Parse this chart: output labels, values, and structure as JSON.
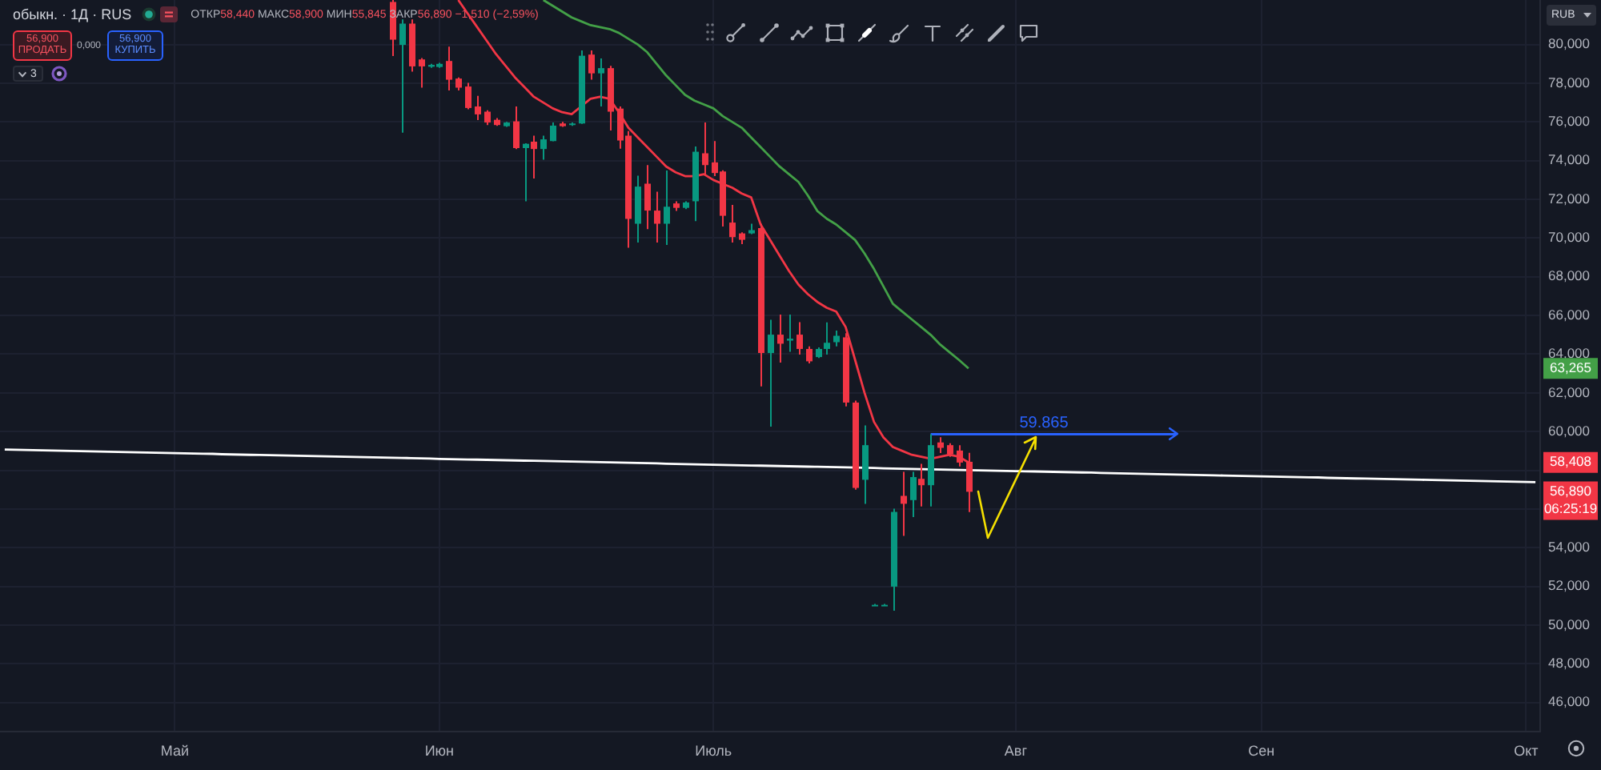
{
  "chart_data": {
    "type": "candlestick",
    "title": "обыкн. · 1Д · RUS",
    "subtitle": "ОТКР58,440 МАКС58,900 МИН55,845 ЗАКР56,890 −1,510 (−2,59%)",
    "ylabel": "RUB",
    "categories": [
      null,
      null,
      null,
      null,
      null,
      null,
      null,
      null,
      null,
      null,
      null,
      null,
      null,
      null,
      null,
      null,
      null,
      null,
      "Май",
      null,
      null,
      null,
      null,
      null,
      null,
      null,
      null,
      null,
      null,
      null,
      null,
      null,
      null,
      null,
      null,
      null,
      null,
      null,
      null,
      null,
      null,
      null,
      null,
      null,
      null,
      null,
      "Июн",
      null,
      null,
      null,
      null,
      null,
      null,
      null,
      null,
      null,
      null,
      null,
      null,
      null,
      null,
      null,
      null,
      null,
      null,
      null,
      null,
      null,
      null,
      null,
      null,
      null,
      null,
      null,
      null,
      "Июль",
      null,
      null,
      null,
      null,
      null,
      null,
      null,
      null,
      null,
      null,
      null,
      null,
      null,
      null,
      null,
      null,
      null,
      null,
      null,
      null,
      null,
      null,
      null,
      null,
      null,
      null,
      null,
      null,
      null,
      null,
      null,
      "Авг",
      null,
      null,
      null,
      null,
      null,
      null,
      null,
      null,
      null,
      null,
      null,
      null,
      null,
      null,
      null,
      null,
      null,
      null,
      null,
      null,
      null,
      null,
      null,
      null,
      null,
      "Сен",
      null,
      null,
      null,
      null,
      null,
      null,
      null,
      null,
      null,
      null,
      null,
      null,
      null,
      null,
      null,
      null,
      null,
      null,
      null,
      null,
      null,
      null,
      null,
      null,
      null,
      null,
      null,
      "Окт",
      null
    ],
    "ylim": [
      44.5,
      82.3
    ],
    "yticks": [
      {
        "value": 46,
        "label": "46,000"
      },
      {
        "value": 48,
        "label": "48,000"
      },
      {
        "value": 50,
        "label": "50,000"
      },
      {
        "value": 52,
        "label": "52,000"
      },
      {
        "value": 54,
        "label": "54,000"
      },
      {
        "value": 56,
        "label": null
      },
      {
        "value": 58,
        "label": null
      },
      {
        "value": 60,
        "label": "60,000"
      },
      {
        "value": 62,
        "label": "62,000"
      },
      {
        "value": 64,
        "label": "64,000"
      },
      {
        "value": 66,
        "label": "66,000"
      },
      {
        "value": 68,
        "label": "68,000"
      },
      {
        "value": 70,
        "label": "70,000"
      },
      {
        "value": 72,
        "label": "72,000"
      },
      {
        "value": 74,
        "label": "74,000"
      },
      {
        "value": 76,
        "label": "76,000"
      },
      {
        "value": 78,
        "label": "78,000"
      },
      {
        "value": 80,
        "label": "80,000"
      }
    ],
    "grid": true,
    "series": [
      {
        "ohlc": [
          null,
          null,
          null,
          null,
          null,
          null,
          null,
          null,
          null,
          null,
          null,
          null,
          null,
          null,
          null,
          null,
          null,
          null,
          null,
          null,
          null,
          null,
          null,
          null,
          null,
          null,
          null,
          null,
          null,
          null,
          null,
          null,
          null,
          null,
          null,
          null,
          null,
          null,
          null,
          null,
          null,
          [
            82.2,
            82.3,
            79.4,
            80.25
          ],
          [
            79.98,
            81.3,
            75.45,
            81.08
          ],
          [
            81.08,
            81.3,
            78.6,
            78.87
          ],
          [
            79.23,
            79.3,
            77.77,
            78.87
          ],
          [
            78.85,
            79.0,
            78.8,
            78.95
          ],
          [
            78.84,
            79.05,
            78.8,
            79.0
          ],
          [
            79.15,
            79.89,
            77.63,
            78.18
          ],
          [
            78.24,
            78.3,
            77.63,
            77.77
          ],
          [
            77.83,
            78.02,
            76.65,
            76.72
          ],
          [
            76.8,
            77.35,
            76.1,
            76.39
          ],
          [
            76.53,
            76.6,
            75.84,
            75.97
          ],
          [
            76.11,
            76.2,
            75.8,
            75.84
          ],
          [
            75.78,
            76.0,
            75.75,
            75.97
          ],
          [
            76.03,
            76.8,
            74.6,
            74.65
          ],
          [
            74.65,
            74.9,
            71.9,
            74.87
          ],
          [
            74.98,
            75.29,
            73.08,
            74.6
          ],
          [
            74.6,
            75.29,
            74.05,
            75.1
          ],
          [
            75.01,
            75.97,
            75.0,
            75.81
          ],
          [
            75.92,
            76.0,
            75.75,
            75.78
          ],
          [
            75.84,
            75.97,
            75.8,
            75.92
          ],
          [
            75.92,
            79.69,
            75.9,
            79.42
          ],
          [
            79.48,
            79.69,
            78.18,
            78.51
          ],
          [
            78.51,
            79.28,
            76.8,
            78.78
          ],
          [
            78.78,
            78.9,
            75.56,
            76.53
          ],
          [
            76.69,
            76.8,
            74.62,
            75.04
          ],
          [
            75.29,
            75.53,
            69.5,
            70.99
          ],
          [
            70.74,
            73.22,
            69.77,
            72.66
          ],
          [
            72.81,
            73.77,
            70.46,
            71.42
          ],
          [
            71.42,
            72.39,
            69.77,
            70.74
          ],
          [
            70.74,
            73.49,
            69.64,
            71.62
          ],
          [
            71.79,
            71.9,
            71.4,
            71.56
          ],
          [
            71.56,
            71.9,
            71.5,
            71.84
          ],
          [
            71.9,
            74.73,
            70.88,
            74.46
          ],
          [
            74.38,
            75.97,
            73.22,
            73.77
          ],
          [
            73.91,
            75.01,
            73.2,
            73.36
          ],
          [
            73.44,
            73.5,
            70.6,
            71.15
          ],
          [
            70.8,
            71.71,
            69.77,
            70.05
          ],
          [
            70.24,
            70.3,
            69.69,
            69.91
          ],
          [
            70.24,
            70.74,
            70.2,
            70.41
          ],
          [
            70.51,
            70.74,
            62.33,
            64.06
          ],
          [
            64.06,
            65.78,
            60.26,
            65.01
          ],
          [
            65.01,
            66.05,
            63.57,
            64.54
          ],
          [
            64.7,
            66.05,
            64.12,
            64.8
          ],
          [
            65.01,
            65.65,
            63.98,
            64.27
          ],
          [
            64.27,
            64.4,
            63.52,
            63.63
          ],
          [
            63.85,
            64.35,
            63.8,
            64.27
          ],
          [
            64.27,
            65.64,
            63.98,
            64.59
          ],
          [
            64.62,
            65.22,
            64.4,
            64.95
          ],
          [
            64.87,
            65.09,
            61.3,
            61.5
          ],
          [
            61.5,
            61.6,
            57.0,
            57.09
          ],
          [
            57.51,
            60.32,
            56.27,
            59.3
          ],
          [
            51.05,
            51.1,
            51.0,
            51.05
          ],
          [
            51.05,
            51.1,
            51.0,
            51.05
          ],
          [
            51.99,
            56.02,
            50.75,
            55.85
          ],
          [
            56.68,
            57.92,
            54.61,
            56.27
          ],
          [
            56.46,
            57.92,
            55.58,
            57.65
          ],
          [
            57.56,
            58.33,
            56.13,
            57.23
          ],
          [
            57.23,
            59.865,
            56.13,
            59.3
          ],
          [
            59.44,
            59.71,
            58.89,
            59.16
          ],
          [
            59.3,
            59.4,
            58.7,
            58.83
          ],
          [
            59.02,
            59.3,
            58.2,
            58.4
          ],
          [
            58.44,
            58.9,
            55.845,
            56.89
          ],
          null,
          null,
          null,
          null,
          null,
          null,
          null,
          null,
          null,
          null,
          null,
          null,
          null,
          null,
          null,
          null,
          null,
          null,
          null,
          null,
          null,
          null,
          null,
          null,
          null,
          null,
          null,
          null,
          null,
          null,
          null,
          null,
          null,
          null,
          null,
          null,
          null,
          null,
          null,
          null,
          null,
          null,
          null,
          null,
          null,
          null,
          null,
          null,
          null,
          null,
          null,
          null,
          null,
          null,
          null,
          null,
          null,
          null,
          null,
          null
        ],
        "colors": [
          null,
          null,
          null,
          null,
          null,
          null,
          null,
          null,
          null,
          null,
          null,
          null,
          null,
          null,
          null,
          null,
          null,
          null,
          null,
          null,
          null,
          null,
          null,
          null,
          null,
          null,
          null,
          null,
          null,
          null,
          null,
          null,
          null,
          null,
          null,
          null,
          null,
          null,
          null,
          null,
          null,
          "#f23645",
          "#089981",
          "#f23645",
          "#f23645",
          "#089981",
          "#089981",
          "#f23645",
          "#f23645",
          "#f23645",
          "#f23645",
          "#f23645",
          "#f23645",
          "#089981",
          "#f23645",
          "#089981",
          "#f23645",
          "#089981",
          "#089981",
          "#f23645",
          "#089981",
          "#089981",
          "#f23645",
          "#089981",
          "#f23645",
          "#f23645",
          "#f23645",
          "#089981",
          "#f23645",
          "#f23645",
          "#089981",
          "#f23645",
          "#089981",
          "#089981",
          "#f23645",
          "#f23645",
          "#f23645",
          "#f23645",
          "#f23645",
          "#089981",
          "#f23645",
          "#089981",
          "#f23645",
          "#089981",
          "#f23645",
          "#f23645",
          "#089981",
          "#089981",
          "#089981",
          "#f23645",
          "#f23645",
          "#089981",
          "#089981",
          "#089981",
          "#089981",
          "#f23645",
          "#089981",
          "#f23645",
          "#089981",
          "#f23645",
          "#f23645",
          "#f23645",
          "#f23645",
          null,
          null,
          null,
          null,
          null,
          null,
          null,
          null,
          null,
          null,
          null,
          null,
          null,
          null,
          null,
          null,
          null,
          null,
          null,
          null,
          null,
          null,
          null,
          null,
          null,
          null,
          null,
          null,
          null,
          null,
          null,
          null,
          null,
          null,
          null,
          null,
          null,
          null,
          null,
          null,
          null,
          null,
          null,
          null,
          null,
          null,
          null,
          null,
          null,
          null,
          null,
          null,
          null,
          null,
          null,
          null,
          null,
          null,
          null,
          null
        ]
      },
      {
        "type": "line",
        "color": "#f23645",
        "values": [
          null,
          null,
          null,
          null,
          null,
          null,
          null,
          null,
          null,
          null,
          null,
          null,
          null,
          null,
          null,
          null,
          null,
          null,
          null,
          null,
          null,
          null,
          null,
          null,
          null,
          null,
          null,
          null,
          null,
          null,
          null,
          null,
          null,
          null,
          null,
          null,
          null,
          null,
          null,
          null,
          null,
          null,
          null,
          null,
          null,
          null,
          null,
          null,
          82.3,
          81.6,
          80.9,
          80.2,
          79.5,
          78.9,
          78.3,
          77.8,
          77.3,
          77.0,
          76.7,
          76.5,
          76.4,
          76.8,
          77.2,
          77.3,
          77.2,
          76.5,
          75.7,
          75.2,
          74.7,
          74.2,
          73.7,
          73.4,
          73.2,
          73.2,
          73.3,
          73.0,
          72.8,
          72.6,
          72.3,
          72.1,
          70.7,
          69.9,
          69.1,
          68.3,
          67.6,
          67.1,
          66.7,
          66.4,
          66.2,
          65.4,
          63.7,
          62.0,
          60.5,
          59.7,
          59.2,
          59.0,
          58.8,
          58.7,
          58.6,
          58.7,
          58.8,
          58.7,
          58.408,
          null,
          null,
          null,
          null,
          null,
          null,
          null,
          null,
          null,
          null,
          null,
          null,
          null,
          null,
          null,
          null,
          null,
          null,
          null,
          null,
          null,
          null,
          null,
          null,
          null,
          null,
          null,
          null,
          null,
          null,
          null,
          null,
          null,
          null,
          null,
          null,
          null,
          null,
          null,
          null,
          null,
          null,
          null,
          null,
          null,
          null,
          null,
          null,
          null,
          null,
          null,
          null,
          null,
          null,
          null,
          null,
          null,
          null,
          null,
          null
        ]
      },
      {
        "type": "line",
        "color": "#43a047",
        "values": [
          null,
          null,
          null,
          null,
          null,
          null,
          null,
          null,
          null,
          null,
          null,
          null,
          null,
          null,
          null,
          null,
          null,
          null,
          null,
          null,
          null,
          null,
          null,
          null,
          null,
          null,
          null,
          null,
          null,
          null,
          null,
          null,
          null,
          null,
          null,
          null,
          null,
          null,
          null,
          null,
          null,
          null,
          null,
          null,
          null,
          null,
          null,
          null,
          null,
          null,
          null,
          null,
          null,
          null,
          null,
          null,
          null,
          82.3,
          82.0,
          81.7,
          81.4,
          81.2,
          81.0,
          80.9,
          80.8,
          80.6,
          80.3,
          80.0,
          79.6,
          79.0,
          78.4,
          77.9,
          77.4,
          77.1,
          76.9,
          76.7,
          76.3,
          76.0,
          75.7,
          75.2,
          74.7,
          74.2,
          73.7,
          73.3,
          72.9,
          72.2,
          71.4,
          71.0,
          70.7,
          70.3,
          69.9,
          69.2,
          68.4,
          67.5,
          66.6,
          66.2,
          65.8,
          65.4,
          65.0,
          64.5,
          64.1,
          63.7,
          63.265,
          null,
          null,
          null,
          null,
          null,
          null,
          null,
          null,
          null,
          null,
          null,
          null,
          null,
          null,
          null,
          null,
          null,
          null,
          null,
          null,
          null,
          null,
          null,
          null,
          null,
          null,
          null,
          null,
          null,
          null,
          null,
          null,
          null,
          null,
          null,
          null,
          null,
          null,
          null,
          null,
          null,
          null,
          null,
          null,
          null,
          null,
          null,
          null,
          null,
          null,
          null,
          null,
          null,
          null,
          null,
          null,
          null,
          null,
          null,
          null
        ]
      },
      {
        "type": "line",
        "color": "#ffffff",
        "values": [
          59.07,
          59.06,
          59.05,
          59.04,
          59.03,
          59.02,
          59.01,
          59.0,
          58.99,
          58.98,
          58.97,
          58.96,
          58.95,
          58.94,
          58.93,
          58.92,
          58.91,
          58.9,
          58.89,
          58.88,
          58.87,
          58.86,
          58.85,
          58.83,
          58.82,
          58.81,
          58.8,
          58.79,
          58.78,
          58.77,
          58.76,
          58.75,
          58.74,
          58.73,
          58.72,
          58.71,
          58.7,
          58.69,
          58.68,
          58.67,
          58.66,
          58.65,
          58.64,
          58.63,
          58.62,
          58.61,
          58.59,
          58.58,
          58.57,
          58.56,
          58.55,
          58.54,
          58.53,
          58.52,
          58.51,
          58.5,
          58.49,
          58.48,
          58.47,
          58.46,
          58.45,
          58.44,
          58.43,
          58.42,
          58.41,
          58.4,
          58.39,
          58.38,
          58.37,
          58.36,
          58.34,
          58.33,
          58.32,
          58.31,
          58.3,
          58.29,
          58.28,
          58.27,
          58.26,
          58.25,
          58.24,
          58.23,
          58.22,
          58.21,
          58.2,
          58.19,
          58.18,
          58.17,
          58.16,
          58.15,
          58.14,
          58.13,
          58.12,
          58.1,
          58.09,
          58.08,
          58.07,
          58.06,
          58.05,
          58.04,
          58.03,
          58.02,
          58.01,
          58.0,
          57.99,
          57.98,
          57.97,
          57.96,
          57.95,
          57.94,
          57.93,
          57.92,
          57.91,
          57.9,
          57.89,
          57.88,
          57.86,
          57.85,
          57.84,
          57.83,
          57.82,
          57.81,
          57.8,
          57.79,
          57.78,
          57.77,
          57.76,
          57.75,
          57.74,
          57.73,
          57.72,
          57.71,
          57.7,
          57.69,
          57.68,
          57.67,
          57.66,
          57.65,
          57.64,
          57.63,
          57.61,
          57.6,
          57.59,
          57.58,
          57.57,
          57.56,
          57.55,
          57.54,
          57.53,
          57.52,
          57.51,
          57.5,
          57.49,
          57.48,
          57.47,
          57.46,
          57.45,
          57.44,
          57.43,
          57.42,
          57.41,
          57.4,
          57.39
        ]
      },
      {
        "type": "line",
        "color": "#2962ff",
        "values": [
          null,
          null,
          null,
          null,
          null,
          null,
          null,
          null,
          null,
          null,
          null,
          null,
          null,
          null,
          null,
          null,
          null,
          null,
          null,
          null,
          null,
          null,
          null,
          null,
          null,
          null,
          null,
          null,
          null,
          null,
          null,
          null,
          null,
          null,
          null,
          null,
          null,
          null,
          null,
          null,
          null,
          null,
          null,
          null,
          null,
          null,
          null,
          null,
          null,
          null,
          null,
          null,
          null,
          null,
          null,
          null,
          null,
          null,
          null,
          null,
          null,
          null,
          null,
          null,
          null,
          null,
          null,
          null,
          null,
          null,
          null,
          null,
          null,
          null,
          null,
          null,
          null,
          null,
          null,
          null,
          null,
          null,
          null,
          null,
          null,
          null,
          null,
          null,
          null,
          null,
          null,
          null,
          null,
          null,
          null,
          null,
          null,
          null,
          59.865,
          59.865,
          59.865,
          59.865,
          59.865,
          59.865,
          59.865,
          59.865,
          59.865,
          59.865,
          59.865,
          59.865,
          59.865,
          59.865,
          59.865,
          59.865,
          59.865,
          59.865,
          59.865,
          59.865,
          59.865,
          59.865,
          59.865,
          59.865,
          59.865,
          59.865,
          59.865,
          null,
          null,
          null,
          null,
          null,
          null,
          null,
          null,
          null,
          null,
          null,
          null,
          null,
          null,
          null,
          null,
          null,
          null,
          null,
          null,
          null,
          null,
          null,
          null,
          null,
          null,
          null,
          null,
          null,
          null,
          null,
          null,
          null,
          null,
          null,
          null,
          null,
          null
        ]
      }
    ],
    "annotations": [
      "56,900",
      "ПРОДАТЬ",
      "0,000",
      "56,900",
      "КУПИТЬ",
      "3",
      {
        "text": "59.865",
        "y": 59.865
      },
      "56,890\n06:25:19",
      "58,408",
      "63,265"
    ]
  }
}
